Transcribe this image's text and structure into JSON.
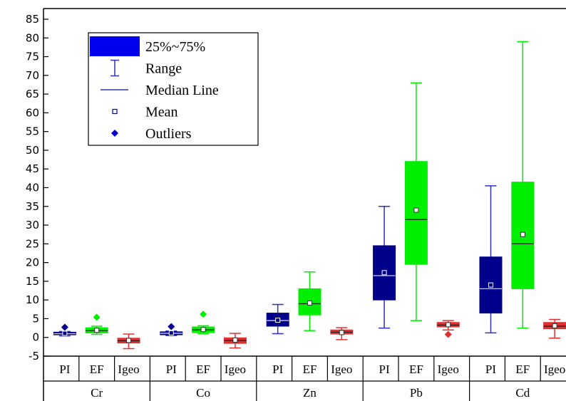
{
  "chart_data": {
    "type": "box",
    "ylim": [
      -5,
      87
    ],
    "yticks": [
      -5,
      0,
      5,
      10,
      15,
      20,
      25,
      30,
      35,
      40,
      45,
      50,
      55,
      60,
      65,
      70,
      75,
      80,
      85
    ],
    "groups": [
      "Cr",
      "Co",
      "Zn",
      "Pb",
      "Cd"
    ],
    "subcategories": [
      "PI",
      "EF",
      "Igeo"
    ],
    "colors": {
      "PI": "#00008b",
      "EF": "#00ee00",
      "Igeo": "#e03030"
    },
    "legend": {
      "placement": "top-left",
      "items": [
        {
          "icon": "box-icon",
          "label": "25%~75%"
        },
        {
          "icon": "range-icon",
          "label": "Range"
        },
        {
          "icon": "median-line-icon",
          "label": "Median Line"
        },
        {
          "icon": "mean-marker-icon",
          "label": "Mean"
        },
        {
          "icon": "outlier-marker-icon",
          "label": "Outliers"
        }
      ]
    },
    "boxes": [
      {
        "group": "Cr",
        "category": "PI",
        "min": 0.4,
        "q1": 0.7,
        "median": 1.0,
        "q3": 1.4,
        "max": 1.6,
        "mean": 1.1,
        "outliers": [
          2.7
        ]
      },
      {
        "group": "Cr",
        "category": "EF",
        "min": 0.8,
        "q1": 1.2,
        "median": 1.8,
        "q3": 2.6,
        "max": 3.0,
        "mean": 1.9,
        "outliers": [
          5.4
        ]
      },
      {
        "group": "Cr",
        "category": "Igeo",
        "min": -3.0,
        "q1": -1.5,
        "median": -0.9,
        "q3": -0.2,
        "max": 0.9,
        "mean": -0.8,
        "outliers": []
      },
      {
        "group": "Co",
        "category": "PI",
        "min": 0.5,
        "q1": 0.7,
        "median": 1.1,
        "q3": 1.5,
        "max": 1.7,
        "mean": 1.2,
        "outliers": [
          2.9
        ]
      },
      {
        "group": "Co",
        "category": "EF",
        "min": 1.0,
        "q1": 1.3,
        "median": 2.0,
        "q3": 2.8,
        "max": 3.1,
        "mean": 2.1,
        "outliers": [
          6.2
        ]
      },
      {
        "group": "Co",
        "category": "Igeo",
        "min": -2.8,
        "q1": -1.6,
        "median": -0.8,
        "q3": -0.1,
        "max": 1.1,
        "mean": -0.7,
        "outliers": []
      },
      {
        "group": "Zn",
        "category": "PI",
        "min": 1.0,
        "q1": 3.0,
        "median": 4.5,
        "q3": 6.5,
        "max": 8.8,
        "mean": 4.6,
        "outliers": []
      },
      {
        "group": "Zn",
        "category": "EF",
        "min": 1.8,
        "q1": 6.0,
        "median": 9.0,
        "q3": 13.0,
        "max": 17.5,
        "mean": 9.2,
        "outliers": []
      },
      {
        "group": "Zn",
        "category": "Igeo",
        "min": -0.6,
        "q1": 0.9,
        "median": 1.4,
        "q3": 2.0,
        "max": 2.6,
        "mean": 1.3,
        "outliers": []
      },
      {
        "group": "Pb",
        "category": "PI",
        "min": 2.5,
        "q1": 10.0,
        "median": 16.5,
        "q3": 24.5,
        "max": 35.0,
        "mean": 17.3,
        "outliers": []
      },
      {
        "group": "Pb",
        "category": "EF",
        "min": 4.5,
        "q1": 19.5,
        "median": 31.5,
        "q3": 47.0,
        "max": 68.0,
        "mean": 34.0,
        "outliers": []
      },
      {
        "group": "Pb",
        "category": "Igeo",
        "min": 2.0,
        "q1": 2.8,
        "median": 3.3,
        "q3": 4.0,
        "max": 4.5,
        "mean": 3.4,
        "outliers": [
          0.8
        ]
      },
      {
        "group": "Cd",
        "category": "PI",
        "min": 1.2,
        "q1": 6.5,
        "median": 13.0,
        "q3": 21.5,
        "max": 40.5,
        "mean": 14.0,
        "outliers": []
      },
      {
        "group": "Cd",
        "category": "EF",
        "min": 2.5,
        "q1": 13.0,
        "median": 25.0,
        "q3": 41.5,
        "max": 79.0,
        "mean": 27.5,
        "outliers": []
      },
      {
        "group": "Cd",
        "category": "Igeo",
        "min": -0.2,
        "q1": 2.3,
        "median": 3.0,
        "q3": 4.0,
        "max": 4.8,
        "mean": 3.1,
        "outliers": []
      }
    ]
  }
}
